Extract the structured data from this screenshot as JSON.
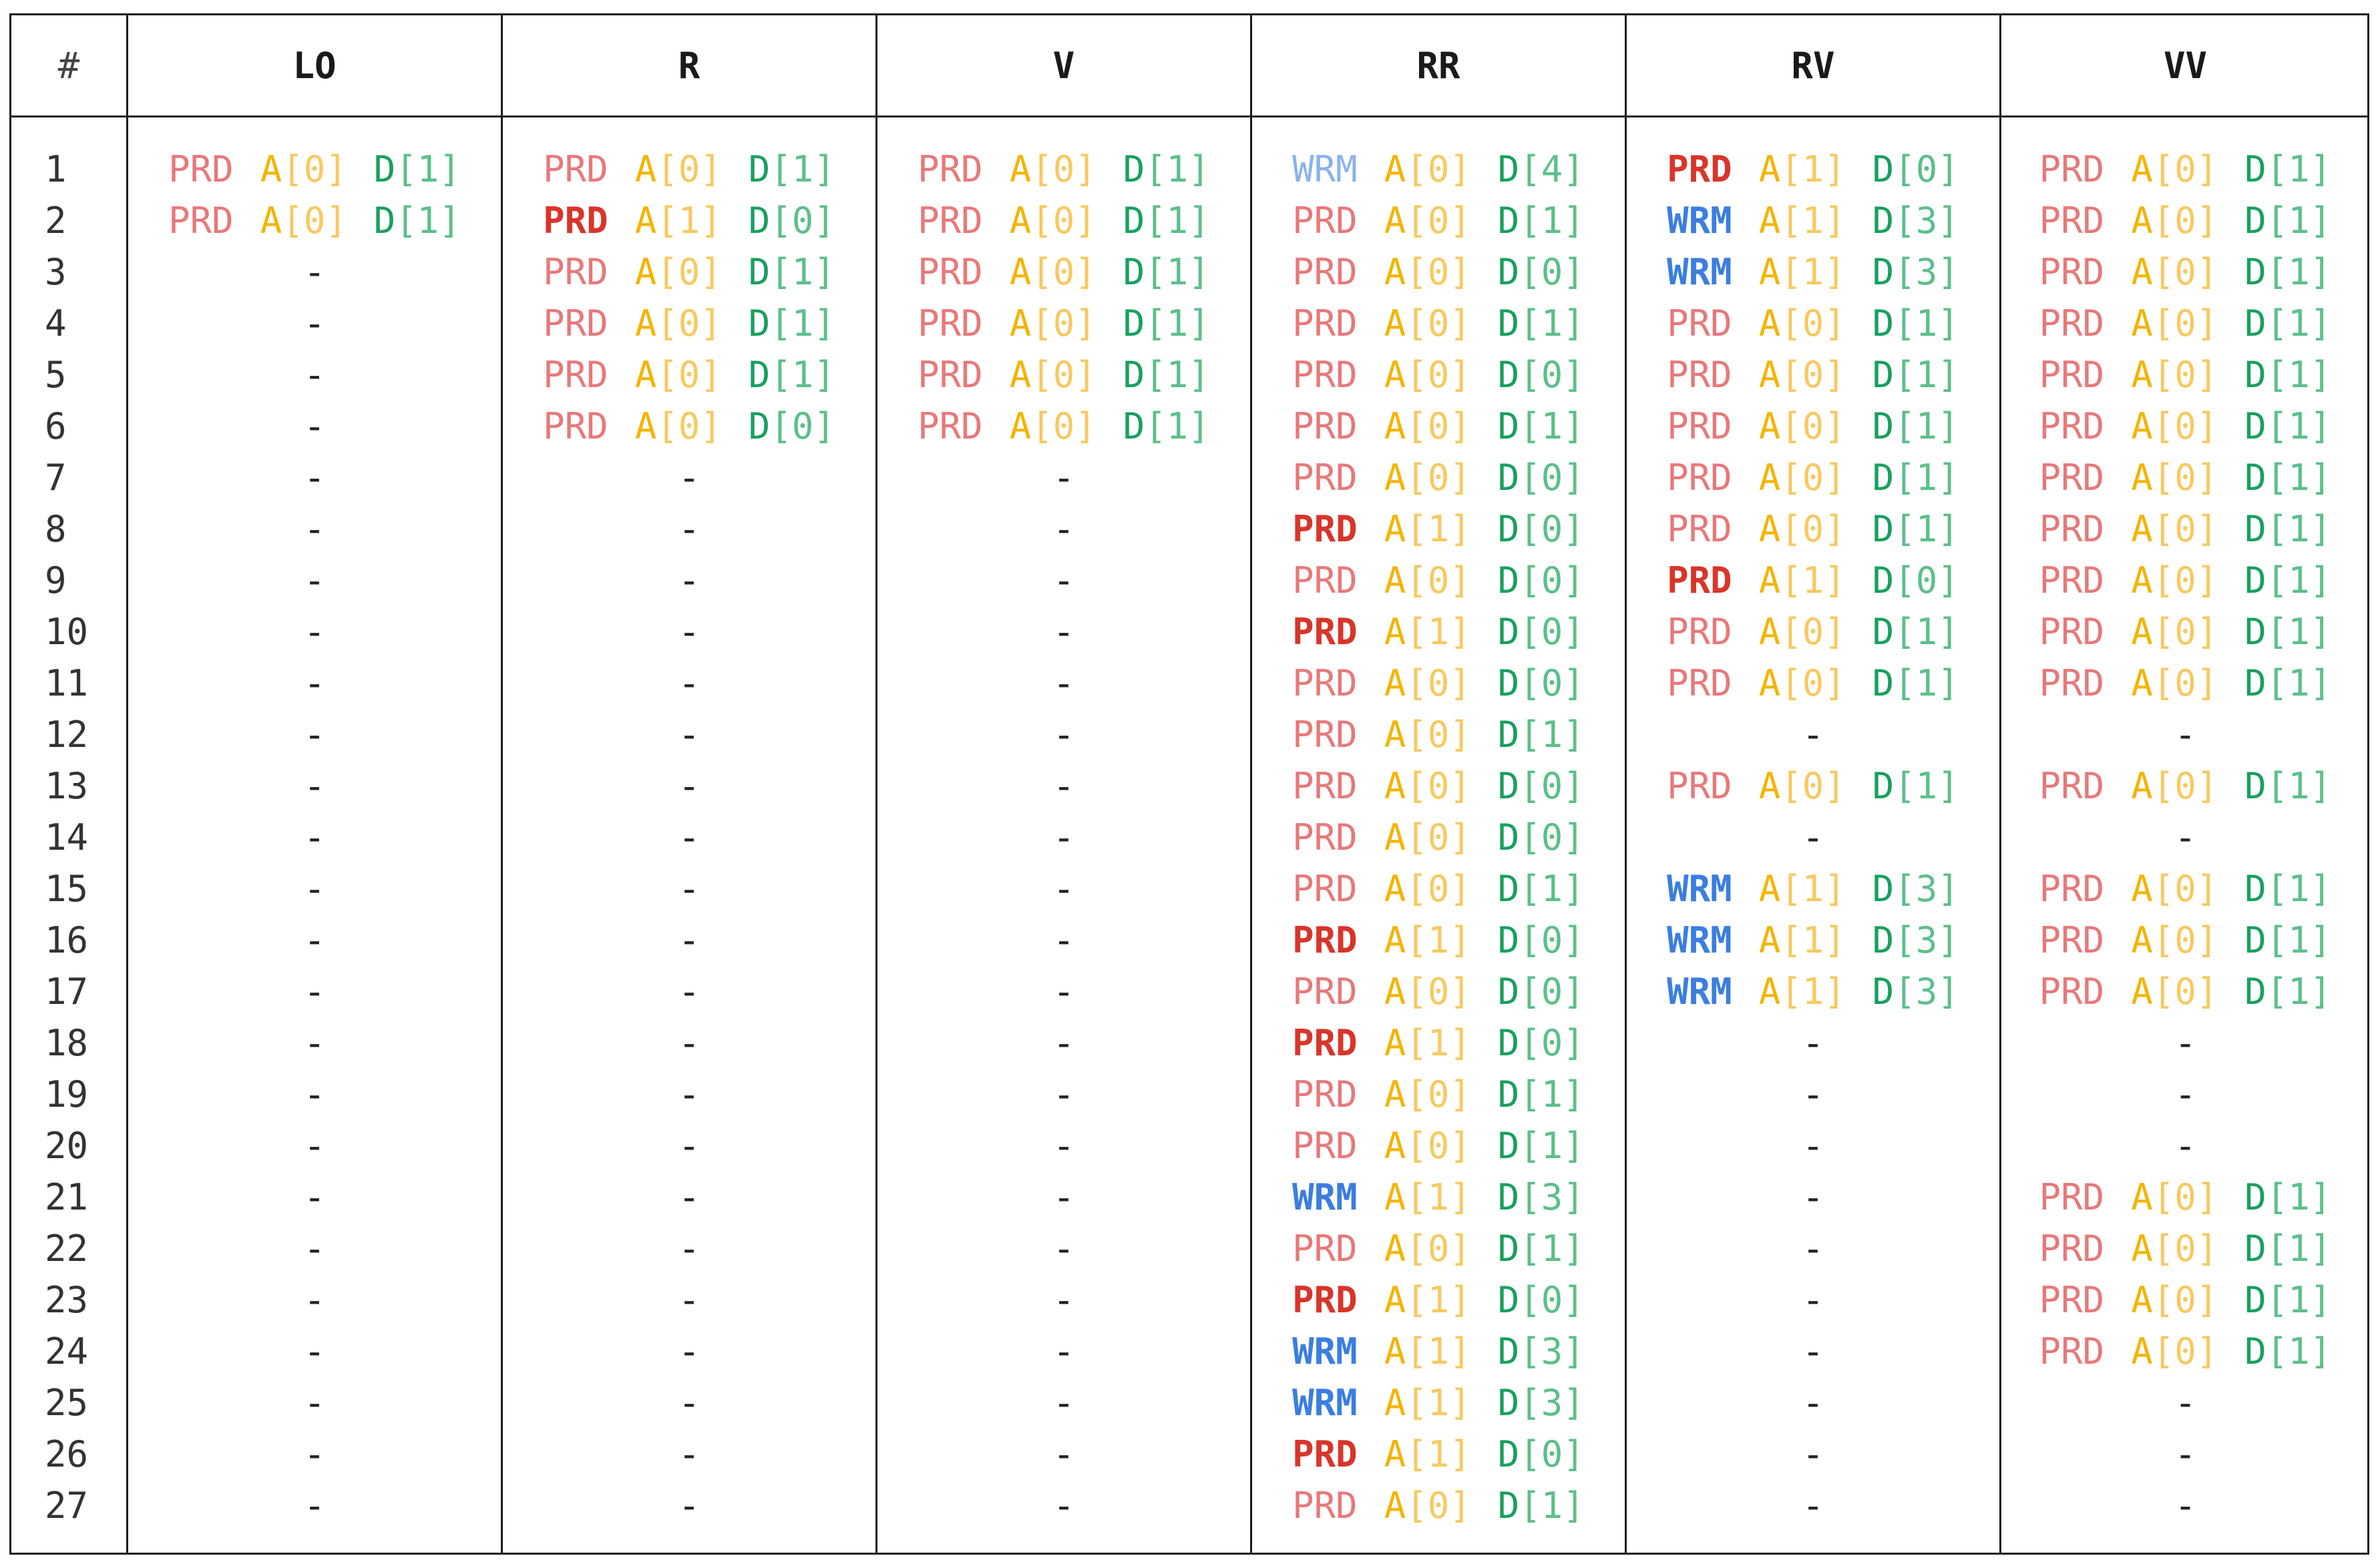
{
  "header": {
    "index_label": "#",
    "columns": [
      "LO",
      "R",
      "V",
      "RR",
      "RV",
      "VV"
    ]
  },
  "empty_marker": "-",
  "rows": [
    {
      "n": "1",
      "cells": [
        [
          "PRD",
          "0",
          "1",
          ""
        ],
        [
          "PRD",
          "0",
          "1",
          ""
        ],
        [
          "PRD",
          "0",
          "1",
          ""
        ],
        [
          "WRM",
          "0",
          "4",
          "l"
        ],
        [
          "PRD",
          "1",
          "0",
          "b"
        ],
        [
          "PRD",
          "0",
          "1",
          ""
        ]
      ]
    },
    {
      "n": "2",
      "cells": [
        [
          "PRD",
          "0",
          "1",
          ""
        ],
        [
          "PRD",
          "1",
          "0",
          "b"
        ],
        [
          "PRD",
          "0",
          "1",
          ""
        ],
        [
          "PRD",
          "0",
          "1",
          ""
        ],
        [
          "WRM",
          "1",
          "3",
          ""
        ],
        [
          "PRD",
          "0",
          "1",
          ""
        ]
      ]
    },
    {
      "n": "3",
      "cells": [
        null,
        [
          "PRD",
          "0",
          "1",
          ""
        ],
        [
          "PRD",
          "0",
          "1",
          ""
        ],
        [
          "PRD",
          "0",
          "0",
          ""
        ],
        [
          "WRM",
          "1",
          "3",
          ""
        ],
        [
          "PRD",
          "0",
          "1",
          ""
        ]
      ]
    },
    {
      "n": "4",
      "cells": [
        null,
        [
          "PRD",
          "0",
          "1",
          ""
        ],
        [
          "PRD",
          "0",
          "1",
          ""
        ],
        [
          "PRD",
          "0",
          "1",
          ""
        ],
        [
          "PRD",
          "0",
          "1",
          ""
        ],
        [
          "PRD",
          "0",
          "1",
          ""
        ]
      ]
    },
    {
      "n": "5",
      "cells": [
        null,
        [
          "PRD",
          "0",
          "1",
          ""
        ],
        [
          "PRD",
          "0",
          "1",
          ""
        ],
        [
          "PRD",
          "0",
          "0",
          ""
        ],
        [
          "PRD",
          "0",
          "1",
          ""
        ],
        [
          "PRD",
          "0",
          "1",
          ""
        ]
      ]
    },
    {
      "n": "6",
      "cells": [
        null,
        [
          "PRD",
          "0",
          "0",
          ""
        ],
        [
          "PRD",
          "0",
          "1",
          ""
        ],
        [
          "PRD",
          "0",
          "1",
          ""
        ],
        [
          "PRD",
          "0",
          "1",
          ""
        ],
        [
          "PRD",
          "0",
          "1",
          ""
        ]
      ]
    },
    {
      "n": "7",
      "cells": [
        null,
        null,
        null,
        [
          "PRD",
          "0",
          "0",
          ""
        ],
        [
          "PRD",
          "0",
          "1",
          ""
        ],
        [
          "PRD",
          "0",
          "1",
          ""
        ]
      ]
    },
    {
      "n": "8",
      "cells": [
        null,
        null,
        null,
        [
          "PRD",
          "1",
          "0",
          "b"
        ],
        [
          "PRD",
          "0",
          "1",
          ""
        ],
        [
          "PRD",
          "0",
          "1",
          ""
        ]
      ]
    },
    {
      "n": "9",
      "cells": [
        null,
        null,
        null,
        [
          "PRD",
          "0",
          "0",
          ""
        ],
        [
          "PRD",
          "1",
          "0",
          "b"
        ],
        [
          "PRD",
          "0",
          "1",
          ""
        ]
      ]
    },
    {
      "n": "10",
      "cells": [
        null,
        null,
        null,
        [
          "PRD",
          "1",
          "0",
          "b"
        ],
        [
          "PRD",
          "0",
          "1",
          ""
        ],
        [
          "PRD",
          "0",
          "1",
          ""
        ]
      ]
    },
    {
      "n": "11",
      "cells": [
        null,
        null,
        null,
        [
          "PRD",
          "0",
          "0",
          ""
        ],
        [
          "PRD",
          "0",
          "1",
          ""
        ],
        [
          "PRD",
          "0",
          "1",
          ""
        ]
      ]
    },
    {
      "n": "12",
      "cells": [
        null,
        null,
        null,
        [
          "PRD",
          "0",
          "1",
          ""
        ],
        null,
        null
      ]
    },
    {
      "n": "13",
      "cells": [
        null,
        null,
        null,
        [
          "PRD",
          "0",
          "0",
          ""
        ],
        [
          "PRD",
          "0",
          "1",
          ""
        ],
        [
          "PRD",
          "0",
          "1",
          ""
        ]
      ]
    },
    {
      "n": "14",
      "cells": [
        null,
        null,
        null,
        [
          "PRD",
          "0",
          "0",
          ""
        ],
        null,
        null
      ]
    },
    {
      "n": "15",
      "cells": [
        null,
        null,
        null,
        [
          "PRD",
          "0",
          "1",
          ""
        ],
        [
          "WRM",
          "1",
          "3",
          ""
        ],
        [
          "PRD",
          "0",
          "1",
          ""
        ]
      ]
    },
    {
      "n": "16",
      "cells": [
        null,
        null,
        null,
        [
          "PRD",
          "1",
          "0",
          "b"
        ],
        [
          "WRM",
          "1",
          "3",
          ""
        ],
        [
          "PRD",
          "0",
          "1",
          ""
        ]
      ]
    },
    {
      "n": "17",
      "cells": [
        null,
        null,
        null,
        [
          "PRD",
          "0",
          "0",
          ""
        ],
        [
          "WRM",
          "1",
          "3",
          ""
        ],
        [
          "PRD",
          "0",
          "1",
          ""
        ]
      ]
    },
    {
      "n": "18",
      "cells": [
        null,
        null,
        null,
        [
          "PRD",
          "1",
          "0",
          "b"
        ],
        null,
        null
      ]
    },
    {
      "n": "19",
      "cells": [
        null,
        null,
        null,
        [
          "PRD",
          "0",
          "1",
          ""
        ],
        null,
        null
      ]
    },
    {
      "n": "20",
      "cells": [
        null,
        null,
        null,
        [
          "PRD",
          "0",
          "1",
          ""
        ],
        null,
        null
      ]
    },
    {
      "n": "21",
      "cells": [
        null,
        null,
        null,
        [
          "WRM",
          "1",
          "3",
          ""
        ],
        null,
        [
          "PRD",
          "0",
          "1",
          ""
        ]
      ]
    },
    {
      "n": "22",
      "cells": [
        null,
        null,
        null,
        [
          "PRD",
          "0",
          "1",
          ""
        ],
        null,
        [
          "PRD",
          "0",
          "1",
          ""
        ]
      ]
    },
    {
      "n": "23",
      "cells": [
        null,
        null,
        null,
        [
          "PRD",
          "1",
          "0",
          "b"
        ],
        null,
        [
          "PRD",
          "0",
          "1",
          ""
        ]
      ]
    },
    {
      "n": "24",
      "cells": [
        null,
        null,
        null,
        [
          "WRM",
          "1",
          "3",
          ""
        ],
        null,
        [
          "PRD",
          "0",
          "1",
          ""
        ]
      ]
    },
    {
      "n": "25",
      "cells": [
        null,
        null,
        null,
        [
          "WRM",
          "1",
          "3",
          ""
        ],
        null,
        null
      ]
    },
    {
      "n": "26",
      "cells": [
        null,
        null,
        null,
        [
          "PRD",
          "1",
          "0",
          "b"
        ],
        null,
        null
      ]
    },
    {
      "n": "27",
      "cells": [
        null,
        null,
        null,
        [
          "PRD",
          "0",
          "1",
          ""
        ],
        null,
        null
      ]
    }
  ],
  "colors": {
    "prd": "#e8787a",
    "prd_bold": "#d9352a",
    "wrm": "#3b7ee0",
    "wrm_light": "#8ab2ec",
    "a": "#f4b400",
    "d": "#17a05e",
    "border": "#1a1a1a"
  }
}
